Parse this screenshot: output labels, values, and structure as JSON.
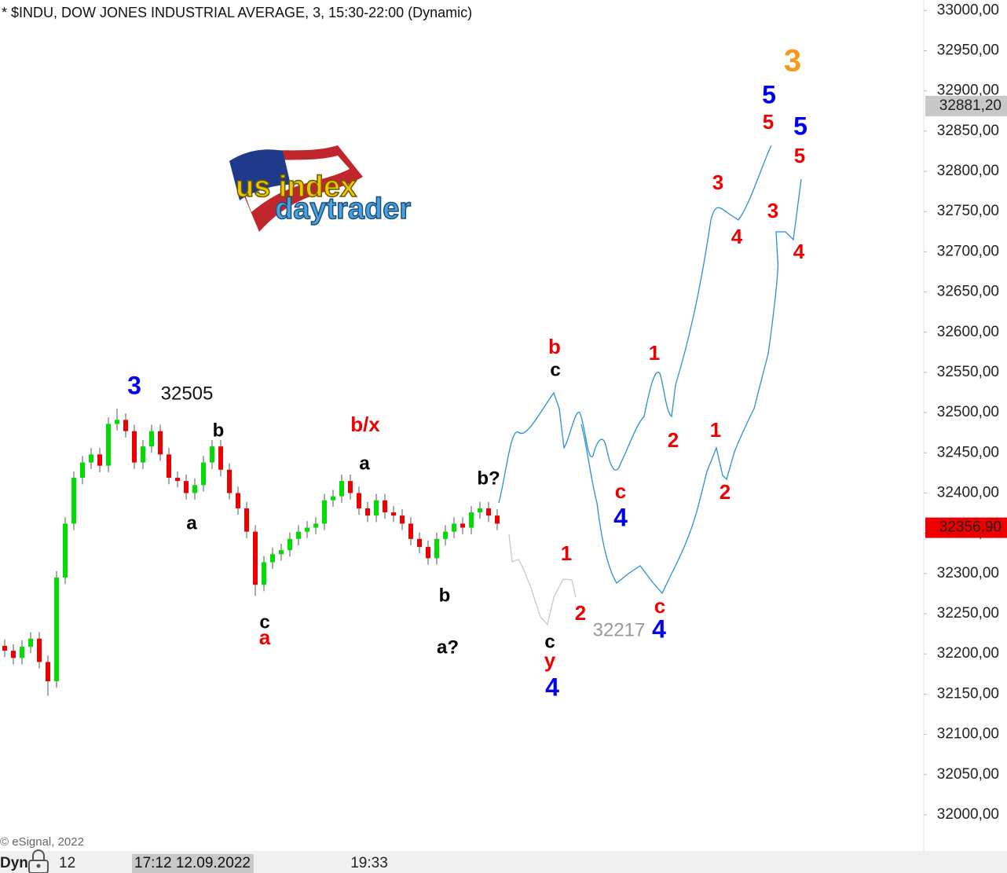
{
  "chart_data": {
    "type": "candlestick",
    "title": "* $INDU, DOW JONES INDUSTRIAL AVERAGE, 3, 15:30-22:00 (Dynamic)",
    "up_color": "#00dd00",
    "down_color": "#ee0000",
    "open": [
      32210,
      32204,
      32195,
      32209,
      32219,
      32190,
      32166,
      32295,
      32362,
      32419,
      32438,
      32448,
      32434,
      32486,
      32491,
      32477,
      32438,
      32458,
      32477,
      32448,
      32419,
      32415,
      32400,
      32410,
      32438,
      32458,
      32429,
      32400,
      32381,
      32352,
      32286,
      32314,
      32324,
      32329,
      32343,
      32352,
      32357,
      32362,
      32391,
      32396,
      32415,
      32400,
      32381,
      32372,
      32391,
      32376,
      32372,
      32362,
      32343,
      32333,
      32319,
      32343,
      32352,
      32362,
      32357,
      32376,
      32381,
      32372
    ],
    "high": [
      32218,
      32212,
      32217,
      32227,
      32227,
      32198,
      32303,
      32370,
      32427,
      32446,
      32456,
      32456,
      32494,
      32505,
      32499,
      32485,
      32466,
      32485,
      32485,
      32456,
      32427,
      32423,
      32418,
      32446,
      32466,
      32466,
      32437,
      32408,
      32389,
      32360,
      32322,
      32332,
      32337,
      32351,
      32360,
      32365,
      32370,
      32399,
      32404,
      32423,
      32423,
      32408,
      32389,
      32399,
      32399,
      32384,
      32380,
      32370,
      32351,
      32341,
      32351,
      32360,
      32370,
      32370,
      32384,
      32389,
      32389,
      32380
    ],
    "low": [
      32196,
      32187,
      32187,
      32201,
      32182,
      32148,
      32158,
      32287,
      32354,
      32411,
      32430,
      32426,
      32426,
      32478,
      32469,
      32430,
      32430,
      32450,
      32440,
      32411,
      32407,
      32392,
      32392,
      32402,
      32430,
      32421,
      32392,
      32373,
      32344,
      32272,
      32278,
      32306,
      32316,
      32321,
      32335,
      32344,
      32349,
      32354,
      32383,
      32388,
      32392,
      32373,
      32364,
      32364,
      32368,
      32364,
      32354,
      32335,
      32325,
      32311,
      32311,
      32335,
      32344,
      32349,
      32349,
      32368,
      32364,
      32354
    ],
    "close": [
      32204,
      32195,
      32209,
      32219,
      32190,
      32166,
      32295,
      32362,
      32419,
      32438,
      32448,
      32434,
      32486,
      32491,
      32477,
      32438,
      32458,
      32477,
      32448,
      32419,
      32415,
      32400,
      32410,
      32438,
      32458,
      32429,
      32400,
      32381,
      32352,
      32286,
      32314,
      32324,
      32329,
      32343,
      32352,
      32357,
      32362,
      32391,
      32396,
      32415,
      32400,
      32381,
      32372,
      32391,
      32376,
      32372,
      32362,
      32343,
      32333,
      32319,
      32343,
      32352,
      32362,
      32357,
      32376,
      32381,
      32372,
      32362
    ],
    "ylim": [
      31955,
      33013
    ],
    "yticks": [
      {
        "value": 32000,
        "label": "32000,00"
      },
      {
        "value": 32050,
        "label": "32050,00"
      },
      {
        "value": 32100,
        "label": "32100,00"
      },
      {
        "value": 32150,
        "label": "32150,00"
      },
      {
        "value": 32200,
        "label": "32200,00"
      },
      {
        "value": 32250,
        "label": "32250,00"
      },
      {
        "value": 32300,
        "label": "32300,00"
      },
      {
        "value": 32350,
        "label": "32350,00"
      },
      {
        "value": 32400,
        "label": "32400,00"
      },
      {
        "value": 32450,
        "label": "32450,00"
      },
      {
        "value": 32500,
        "label": "32500,00"
      },
      {
        "value": 32550,
        "label": "32550,00"
      },
      {
        "value": 32600,
        "label": "32600,00"
      },
      {
        "value": 32650,
        "label": "32650,00"
      },
      {
        "value": 32700,
        "label": "32700,00"
      },
      {
        "value": 32750,
        "label": "32750,00"
      },
      {
        "value": 32800,
        "label": "32800,00"
      },
      {
        "value": 32850,
        "label": "32850,00"
      },
      {
        "value": 32900,
        "label": "32900,00"
      },
      {
        "value": 32950,
        "label": "32950,00"
      },
      {
        "value": 33000,
        "label": "33000,00"
      }
    ],
    "price_tags": [
      {
        "value": 32881.2,
        "label": "32881,20",
        "color": "#c8c8c8",
        "text_color": "#111111"
      },
      {
        "value": 32356.9,
        "label": "32356,90",
        "color": "#ee0000",
        "text_color": "#ffffff"
      }
    ],
    "annotations": [
      {
        "text": "3",
        "color": "#0000ee"
      },
      {
        "text": "32505",
        "color": "#111111"
      },
      {
        "text": "b",
        "color": "#000000"
      },
      {
        "text": "a",
        "color": "#000000"
      },
      {
        "text": "c",
        "color": "#000000"
      },
      {
        "text": "a",
        "color": "#ee0000"
      },
      {
        "text": "b/x",
        "color": "#ee0000"
      },
      {
        "text": "a",
        "color": "#000000"
      },
      {
        "text": "b",
        "color": "#000000"
      },
      {
        "text": "a?",
        "color": "#000000"
      },
      {
        "text": "b?",
        "color": "#000000"
      },
      {
        "text": "b",
        "color": "#ee0000"
      },
      {
        "text": "c",
        "color": "#000000"
      },
      {
        "text": "c",
        "color": "#ee0000"
      },
      {
        "text": "4",
        "color": "#0000ee"
      },
      {
        "text": "1",
        "color": "#ee0000"
      },
      {
        "text": "2",
        "color": "#ee0000"
      },
      {
        "text": "c",
        "color": "#000000"
      },
      {
        "text": "y",
        "color": "#ee0000"
      },
      {
        "text": "4",
        "color": "#0000ee"
      },
      {
        "text": "32217",
        "color": "#999999"
      },
      {
        "text": "c",
        "color": "#ee0000"
      },
      {
        "text": "4",
        "color": "#0000ee"
      },
      {
        "text": "1",
        "color": "#ee0000"
      },
      {
        "text": "2",
        "color": "#ee0000"
      },
      {
        "text": "1",
        "color": "#ee0000"
      },
      {
        "text": "2",
        "color": "#ee0000"
      },
      {
        "text": "3",
        "color": "#ee0000"
      },
      {
        "text": "4",
        "color": "#ee0000"
      },
      {
        "text": "5",
        "color": "#ee0000"
      },
      {
        "text": "5",
        "color": "#0000ee"
      },
      {
        "text": "3",
        "color": "#ee0000"
      },
      {
        "text": "4",
        "color": "#ee0000"
      },
      {
        "text": "5",
        "color": "#ee0000"
      },
      {
        "text": "5",
        "color": "#0000ee"
      },
      {
        "text": "3",
        "color": "#f59a1b"
      }
    ],
    "logo": [
      "us index",
      "daytrader"
    ],
    "copyright": "© eSignal, 2022",
    "footer": {
      "mode": "Dyn",
      "count": "12",
      "cursor_time": "17:12 12.09.2022",
      "time_label": "19:33"
    }
  }
}
